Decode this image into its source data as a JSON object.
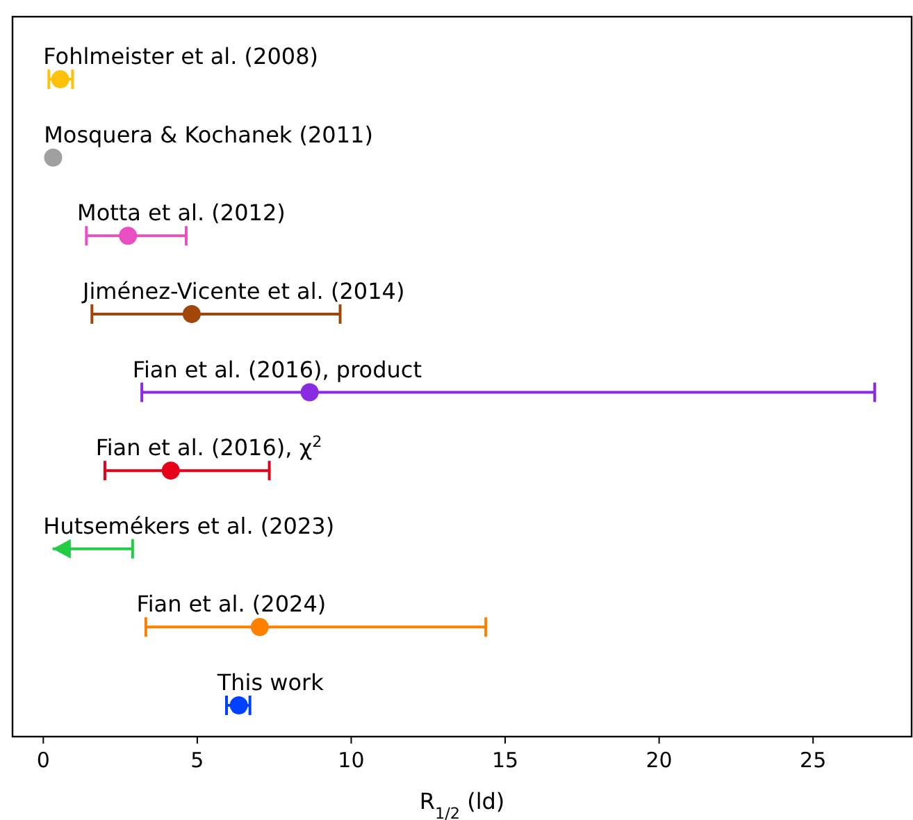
{
  "chart_data": {
    "type": "scatter",
    "orientation": "horizontal",
    "categories": [
      "Fohlmeister et al. (2008)",
      "Mosquera & Kochanek (2011)",
      "Motta et al. (2012)",
      "Jiménez-Vicente et al. (2014)",
      "Fian et al. (2016), product",
      "Fian et al. (2016), χ$^{2}$",
      "Hutsemékers et al. (2023)",
      "Fian et al. (2024)",
      "This work"
    ],
    "series": [
      {
        "marker": "circle",
        "colors": [
          "#ffc20a",
          "#a0a0a0",
          "#e84fc3",
          "#a0460a",
          "#8a2be2",
          "#e6001a",
          null,
          "#ff8000",
          "#0040ff"
        ],
        "values": [
          0.55,
          0.32,
          2.75,
          4.82,
          8.65,
          4.14,
          null,
          7.03,
          6.35
        ],
        "errors": [
          [
            0.18,
            0.95
          ],
          null,
          [
            1.4,
            4.64
          ],
          [
            1.58,
            9.64
          ],
          [
            3.2,
            27.0
          ],
          [
            2.0,
            7.34
          ],
          null,
          [
            3.33,
            14.37
          ],
          [
            5.95,
            6.71
          ]
        ]
      },
      {
        "marker": "triangle",
        "colors": [
          null,
          null,
          null,
          null,
          null,
          null,
          "#22cc44",
          null,
          null
        ],
        "values": [
          null,
          null,
          null,
          null,
          null,
          null,
          0.6,
          null,
          null
        ],
        "errors": [
          null,
          null,
          null,
          null,
          null,
          null,
          [
            0.3,
            2.9
          ],
          null,
          null
        ]
      }
    ],
    "xlabel": "R$_{1/2}$ (ld)",
    "xlim": [
      -1,
      28.2
    ],
    "xticks": [
      0,
      5,
      10,
      15,
      20,
      25
    ],
    "tick_labels": "x",
    "grid": false
  }
}
